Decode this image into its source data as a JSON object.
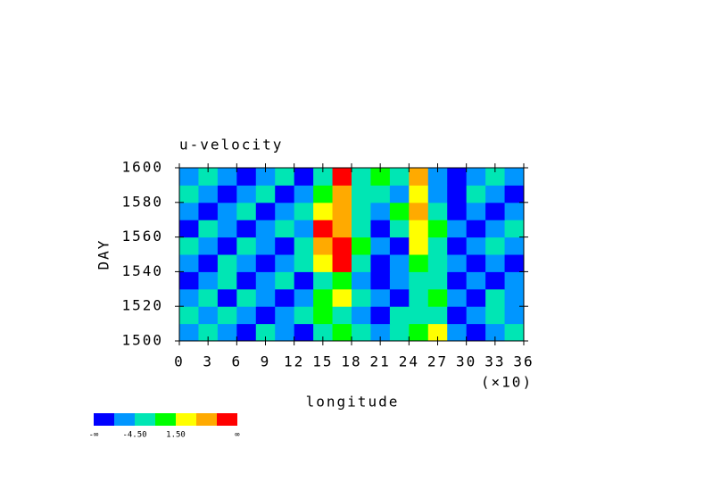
{
  "chart_data": {
    "type": "heatmap",
    "title": "u-velocity",
    "x_label": "longitude",
    "y_label": "DAY",
    "x_multiplier": "(×10)",
    "x": [
      10,
      30,
      50,
      70,
      90,
      110,
      130,
      150,
      170,
      190,
      210,
      230,
      250,
      270,
      290,
      310,
      330,
      350
    ],
    "y": [
      1505,
      1515,
      1525,
      1535,
      1545,
      1555,
      1565,
      1575,
      1585,
      1595
    ],
    "z": [
      [
        -6,
        -3,
        -6,
        -9,
        -3,
        -6,
        -9,
        -3,
        0,
        -3,
        -6,
        -3,
        0,
        3,
        -6,
        -9,
        -6,
        -3
      ],
      [
        -3,
        -6,
        -3,
        -6,
        -9,
        -6,
        -3,
        0,
        -3,
        -6,
        -9,
        -3,
        -3,
        -3,
        -9,
        -6,
        -3,
        -6
      ],
      [
        -6,
        -3,
        -9,
        -3,
        -6,
        -9,
        -6,
        0,
        3,
        -3,
        -6,
        -9,
        -3,
        0,
        -6,
        -9,
        -3,
        -6
      ],
      [
        -9,
        -6,
        -3,
        -9,
        -6,
        -3,
        -9,
        -3,
        0,
        -6,
        -9,
        -6,
        -3,
        -3,
        -9,
        -6,
        -9,
        -6
      ],
      [
        -6,
        -9,
        -3,
        -6,
        -9,
        -6,
        -3,
        3,
        9,
        -3,
        -9,
        -6,
        0,
        -3,
        -6,
        -9,
        -6,
        -9
      ],
      [
        -3,
        -6,
        -9,
        -3,
        -6,
        -9,
        -3,
        6,
        9,
        0,
        -6,
        -9,
        3,
        -3,
        -9,
        -6,
        -3,
        -6
      ],
      [
        -9,
        -3,
        -6,
        -9,
        -6,
        -3,
        -6,
        9,
        6,
        -3,
        -9,
        -3,
        3,
        0,
        -6,
        -9,
        -6,
        -3
      ],
      [
        -6,
        -9,
        -6,
        -3,
        -9,
        -6,
        -3,
        3,
        6,
        -3,
        -6,
        0,
        6,
        -3,
        -9,
        -6,
        -9,
        -6
      ],
      [
        -3,
        -6,
        -9,
        -6,
        -3,
        -9,
        -6,
        0,
        6,
        -3,
        -3,
        -6,
        3,
        -6,
        -9,
        -3,
        -6,
        -9
      ],
      [
        -6,
        -3,
        -6,
        -9,
        -6,
        -3,
        -9,
        -3,
        9,
        -3,
        0,
        -3,
        6,
        -6,
        -9,
        -6,
        -3,
        -6
      ]
    ],
    "xlim": [
      0,
      360
    ],
    "ylim": [
      1500,
      1600
    ],
    "xticks": [
      0,
      {
        "value": 30,
        "label": "3"
      },
      {
        "value": 60,
        "label": "6"
      },
      {
        "value": 90,
        "label": "9"
      },
      {
        "value": 120,
        "label": "12"
      },
      {
        "value": 150,
        "label": "15"
      },
      {
        "value": 180,
        "label": "18"
      },
      {
        "value": 210,
        "label": "21"
      },
      {
        "value": 240,
        "label": "24"
      },
      {
        "value": 270,
        "label": "27"
      },
      {
        "value": 300,
        "label": "30"
      },
      {
        "value": 330,
        "label": "33"
      },
      {
        "value": 360,
        "label": "36"
      }
    ],
    "yticks": [
      1500,
      1520,
      1540,
      1560,
      1580,
      1600
    ],
    "colorbar": {
      "colors": [
        "#0000ff",
        "#0096ff",
        "#00e6b4",
        "#00ff00",
        "#ffff00",
        "#ffaa00",
        "#ff0000"
      ],
      "levels": [
        -7.5,
        -4.5,
        -1.5,
        1.5,
        4.5,
        7.5
      ],
      "ticks": [
        {
          "value": -4.5,
          "label": "-4.50"
        },
        {
          "value": 1.5,
          "label": "1.50"
        }
      ],
      "low_label": "-∞",
      "high_label": "∞"
    }
  }
}
